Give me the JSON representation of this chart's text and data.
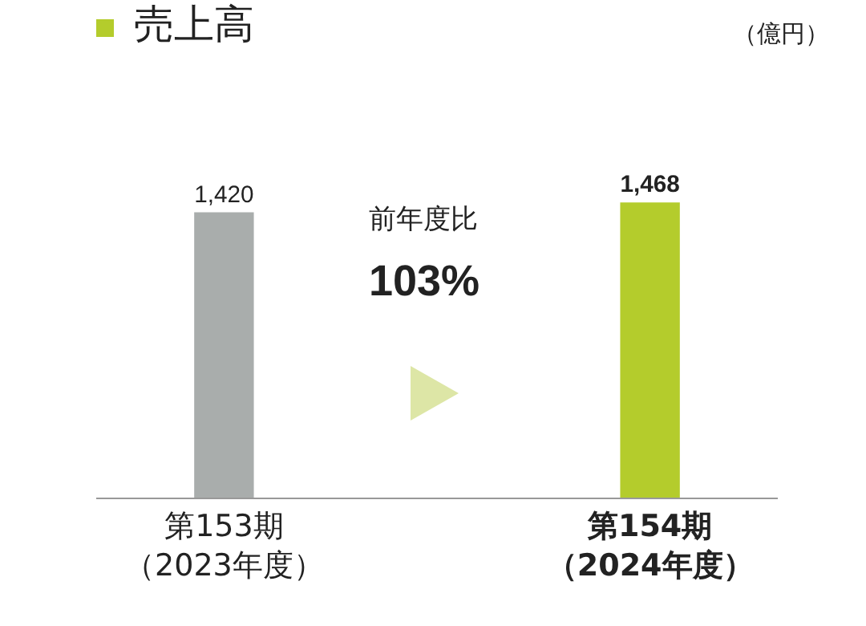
{
  "chart_data": {
    "type": "bar",
    "title": "売上高",
    "categories": [
      "第153期（2023年度）",
      "第154期（2024年度）"
    ],
    "values": [
      1420,
      1468
    ],
    "value_labels": [
      "1,420",
      "1,468"
    ],
    "colors": [
      "#a9adac",
      "#b4cc2c"
    ],
    "grid": false,
    "legend": false,
    "annotations": [
      "（億円）",
      "前年度比\n103%"
    ]
  }
}
